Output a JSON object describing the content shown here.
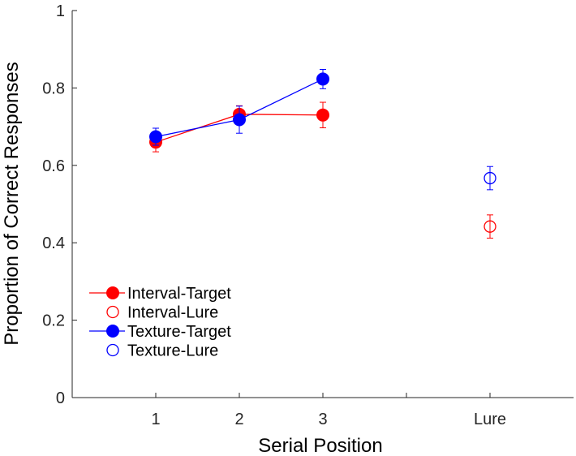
{
  "chart_data": {
    "type": "scatter",
    "xlabel": "Serial Position",
    "ylabel": "Proportion of Correct Responses",
    "xlim": [
      0,
      6
    ],
    "ylim": [
      0,
      1
    ],
    "x_ticks": [
      {
        "value": 1,
        "label": "1"
      },
      {
        "value": 2,
        "label": "2"
      },
      {
        "value": 3,
        "label": "3"
      },
      {
        "value": 4,
        "label": ""
      },
      {
        "value": 5,
        "label": "Lure"
      }
    ],
    "y_ticks": [
      {
        "value": 0,
        "label": "0"
      },
      {
        "value": 0.2,
        "label": "0.2"
      },
      {
        "value": 0.4,
        "label": "0.4"
      },
      {
        "value": 0.6,
        "label": "0.6"
      },
      {
        "value": 0.8,
        "label": "0.8"
      },
      {
        "value": 1,
        "label": "1"
      }
    ],
    "grid": false,
    "legend_position": "bottom-left",
    "series": [
      {
        "name": "Interval-Target",
        "color": "#ff0000",
        "marker": "filled-circle",
        "line": true,
        "points": [
          {
            "x": 1,
            "y": 0.66,
            "err": 0.025
          },
          {
            "x": 2,
            "y": 0.732,
            "err": 0.022
          },
          {
            "x": 3,
            "y": 0.73,
            "err": 0.033
          }
        ]
      },
      {
        "name": "Interval-Lure",
        "color": "#ff0000",
        "marker": "open-circle",
        "line": false,
        "points": [
          {
            "x": 5,
            "y": 0.442,
            "err": 0.03
          }
        ]
      },
      {
        "name": "Texture-Target",
        "color": "#0000ff",
        "marker": "filled-circle",
        "line": true,
        "points": [
          {
            "x": 1,
            "y": 0.674,
            "err": 0.022
          },
          {
            "x": 2,
            "y": 0.718,
            "err": 0.035
          },
          {
            "x": 3,
            "y": 0.823,
            "err": 0.025
          }
        ]
      },
      {
        "name": "Texture-Lure",
        "color": "#0000ff",
        "marker": "open-circle",
        "line": false,
        "points": [
          {
            "x": 5,
            "y": 0.567,
            "err": 0.03
          }
        ]
      }
    ]
  }
}
